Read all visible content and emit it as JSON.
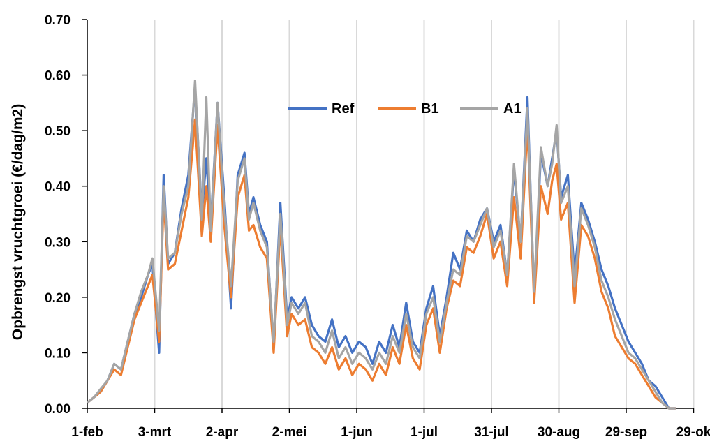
{
  "chart_data": {
    "type": "line",
    "xlabel": "",
    "ylabel": "Opbrengst vruchtgroei (€/dag/m2)",
    "xlim": [
      "1-feb",
      "30-okt"
    ],
    "ylim": [
      0,
      0.7
    ],
    "y_ticks": [
      "0.00",
      "0.10",
      "0.20",
      "0.30",
      "0.40",
      "0.50",
      "0.60",
      "0.70"
    ],
    "x_ticks": [
      "1-feb",
      "3-mrt",
      "2-apr",
      "2-mei",
      "1-jun",
      "1-jul",
      "31-jul",
      "30-aug",
      "29-sep",
      "29-ok"
    ],
    "grid": "vertical",
    "legend": "top-center",
    "colors": {
      "Ref": "#4472C4",
      "B1": "#ED7D31",
      "A1": "#A5A5A5"
    },
    "series": [
      {
        "name": "Ref",
        "x": [
          "1-feb",
          "4-feb",
          "7-feb",
          "10-feb",
          "13-feb",
          "16-feb",
          "19-feb",
          "22-feb",
          "25-feb",
          "28-feb",
          "2-mrt",
          "5-mrt",
          "7-mrt",
          "9-mrt",
          "12-mrt",
          "15-mrt",
          "18-mrt",
          "21-mrt",
          "24-mrt",
          "26-mrt",
          "28-mrt",
          "31-mrt",
          "3-apr",
          "6-apr",
          "9-apr",
          "12-apr",
          "14-apr",
          "16-apr",
          "19-apr",
          "22-apr",
          "25-apr",
          "28-apr",
          "1-mei",
          "3-mei",
          "6-mei",
          "9-mei",
          "12-mei",
          "15-mei",
          "18-mei",
          "21-mei",
          "24-mei",
          "27-mei",
          "30-mei",
          "2-jun",
          "5-jun",
          "8-jun",
          "11-jun",
          "14-jun",
          "17-jun",
          "20-jun",
          "23-jun",
          "26-jun",
          "29-jun",
          "2-jul",
          "5-jul",
          "8-jul",
          "11-jul",
          "14-jul",
          "17-jul",
          "20-jul",
          "23-jul",
          "26-jul",
          "29-jul",
          "1-aug",
          "4-aug",
          "7-aug",
          "10-aug",
          "13-aug",
          "16-aug",
          "19-aug",
          "22-aug",
          "25-aug",
          "27-aug",
          "29-aug",
          "31-aug",
          "3-sep",
          "6-sep",
          "9-sep",
          "12-sep",
          "15-sep",
          "18-sep",
          "21-sep",
          "24-sep",
          "27-sep",
          "30-sep",
          "3-okt",
          "6-okt",
          "9-okt",
          "12-okt",
          "15-okt",
          "18-okt",
          "21-okt"
        ],
        "values": [
          0.01,
          0.02,
          0.03,
          0.05,
          0.08,
          0.07,
          0.12,
          0.17,
          0.2,
          0.24,
          0.26,
          0.1,
          0.42,
          0.26,
          0.28,
          0.36,
          0.42,
          0.58,
          0.35,
          0.45,
          0.33,
          0.55,
          0.38,
          0.18,
          0.42,
          0.46,
          0.35,
          0.38,
          0.33,
          0.3,
          0.11,
          0.37,
          0.16,
          0.2,
          0.18,
          0.2,
          0.15,
          0.13,
          0.12,
          0.16,
          0.11,
          0.13,
          0.1,
          0.12,
          0.11,
          0.08,
          0.12,
          0.1,
          0.15,
          0.11,
          0.19,
          0.12,
          0.1,
          0.18,
          0.22,
          0.13,
          0.2,
          0.28,
          0.25,
          0.32,
          0.3,
          0.34,
          0.36,
          0.3,
          0.33,
          0.24,
          0.43,
          0.3,
          0.56,
          0.2,
          0.46,
          0.4,
          0.45,
          0.5,
          0.38,
          0.42,
          0.24,
          0.37,
          0.34,
          0.3,
          0.25,
          0.22,
          0.18,
          0.15,
          0.12,
          0.1,
          0.08,
          0.05,
          0.04,
          0.02,
          0.0,
          0.0
        ]
      },
      {
        "name": "B1",
        "x": [
          "1-feb",
          "4-feb",
          "7-feb",
          "10-feb",
          "13-feb",
          "16-feb",
          "19-feb",
          "22-feb",
          "25-feb",
          "28-feb",
          "2-mrt",
          "5-mrt",
          "7-mrt",
          "9-mrt",
          "12-mrt",
          "15-mrt",
          "18-mrt",
          "21-mrt",
          "24-mrt",
          "26-mrt",
          "28-mrt",
          "31-mrt",
          "3-apr",
          "6-apr",
          "9-apr",
          "12-apr",
          "14-apr",
          "16-apr",
          "19-apr",
          "22-apr",
          "25-apr",
          "28-apr",
          "1-mei",
          "3-mei",
          "6-mei",
          "9-mei",
          "12-mei",
          "15-mei",
          "18-mei",
          "21-mei",
          "24-mei",
          "27-mei",
          "30-mei",
          "2-jun",
          "5-jun",
          "8-jun",
          "11-jun",
          "14-jun",
          "17-jun",
          "20-jun",
          "23-jun",
          "26-jun",
          "29-jun",
          "2-jul",
          "5-jul",
          "8-jul",
          "11-jul",
          "14-jul",
          "17-jul",
          "20-jul",
          "23-jul",
          "26-jul",
          "29-jul",
          "1-aug",
          "4-aug",
          "7-aug",
          "10-aug",
          "13-aug",
          "16-aug",
          "19-aug",
          "22-aug",
          "25-aug",
          "27-aug",
          "29-aug",
          "31-aug",
          "3-sep",
          "6-sep",
          "9-sep",
          "12-sep",
          "15-sep",
          "18-sep",
          "21-sep",
          "24-sep",
          "27-sep",
          "30-sep",
          "3-okt",
          "6-okt",
          "9-okt",
          "12-okt",
          "15-okt",
          "18-okt",
          "21-okt"
        ],
        "values": [
          0.01,
          0.02,
          0.03,
          0.05,
          0.07,
          0.06,
          0.11,
          0.16,
          0.19,
          0.22,
          0.24,
          0.12,
          0.38,
          0.25,
          0.26,
          0.32,
          0.38,
          0.52,
          0.31,
          0.4,
          0.3,
          0.51,
          0.33,
          0.2,
          0.38,
          0.42,
          0.32,
          0.33,
          0.29,
          0.27,
          0.1,
          0.33,
          0.13,
          0.17,
          0.15,
          0.16,
          0.11,
          0.1,
          0.08,
          0.11,
          0.07,
          0.09,
          0.06,
          0.08,
          0.07,
          0.05,
          0.08,
          0.06,
          0.11,
          0.08,
          0.15,
          0.09,
          0.07,
          0.15,
          0.18,
          0.1,
          0.18,
          0.23,
          0.22,
          0.29,
          0.28,
          0.31,
          0.35,
          0.27,
          0.3,
          0.22,
          0.38,
          0.27,
          0.51,
          0.19,
          0.4,
          0.35,
          0.41,
          0.44,
          0.34,
          0.37,
          0.19,
          0.33,
          0.31,
          0.27,
          0.21,
          0.18,
          0.13,
          0.11,
          0.09,
          0.08,
          0.06,
          0.04,
          0.02,
          0.01,
          0.0,
          0.0
        ]
      },
      {
        "name": "A1",
        "x": [
          "1-feb",
          "4-feb",
          "7-feb",
          "10-feb",
          "13-feb",
          "16-feb",
          "19-feb",
          "22-feb",
          "25-feb",
          "28-feb",
          "2-mrt",
          "5-mrt",
          "7-mrt",
          "9-mrt",
          "12-mrt",
          "15-mrt",
          "18-mrt",
          "21-mrt",
          "24-mrt",
          "26-mrt",
          "28-mrt",
          "31-mrt",
          "3-apr",
          "6-apr",
          "9-apr",
          "12-apr",
          "14-apr",
          "16-apr",
          "19-apr",
          "22-apr",
          "25-apr",
          "28-apr",
          "1-mei",
          "3-mei",
          "6-mei",
          "9-mei",
          "12-mei",
          "15-mei",
          "18-mei",
          "21-mei",
          "24-mei",
          "27-mei",
          "30-mei",
          "2-jun",
          "5-jun",
          "8-jun",
          "11-jun",
          "14-jun",
          "17-jun",
          "20-jun",
          "23-jun",
          "26-jun",
          "29-jun",
          "2-jul",
          "5-jul",
          "8-jul",
          "11-jul",
          "14-jul",
          "17-jul",
          "20-jul",
          "23-jul",
          "26-jul",
          "29-jul",
          "1-aug",
          "4-aug",
          "7-aug",
          "10-aug",
          "13-aug",
          "16-aug",
          "19-aug",
          "22-aug",
          "25-aug",
          "27-aug",
          "29-aug",
          "31-aug",
          "3-sep",
          "6-sep",
          "9-sep",
          "12-sep",
          "15-sep",
          "18-sep",
          "21-sep",
          "24-sep",
          "27-sep",
          "30-sep",
          "3-okt",
          "6-okt",
          "9-okt",
          "12-okt",
          "15-okt",
          "18-okt",
          "21-okt"
        ],
        "values": [
          0.01,
          0.02,
          0.035,
          0.05,
          0.08,
          0.07,
          0.12,
          0.17,
          0.21,
          0.24,
          0.27,
          0.14,
          0.4,
          0.27,
          0.28,
          0.35,
          0.4,
          0.59,
          0.34,
          0.56,
          0.32,
          0.55,
          0.36,
          0.22,
          0.41,
          0.45,
          0.34,
          0.37,
          0.32,
          0.29,
          0.12,
          0.35,
          0.15,
          0.19,
          0.17,
          0.19,
          0.13,
          0.12,
          0.1,
          0.14,
          0.09,
          0.11,
          0.08,
          0.1,
          0.09,
          0.07,
          0.1,
          0.08,
          0.13,
          0.1,
          0.17,
          0.11,
          0.09,
          0.17,
          0.2,
          0.12,
          0.19,
          0.25,
          0.24,
          0.31,
          0.3,
          0.33,
          0.36,
          0.29,
          0.32,
          0.24,
          0.44,
          0.3,
          0.54,
          0.21,
          0.47,
          0.4,
          0.44,
          0.51,
          0.37,
          0.4,
          0.22,
          0.36,
          0.33,
          0.29,
          0.23,
          0.2,
          0.16,
          0.13,
          0.1,
          0.09,
          0.07,
          0.05,
          0.03,
          0.01,
          0.0,
          0.0
        ]
      }
    ]
  }
}
